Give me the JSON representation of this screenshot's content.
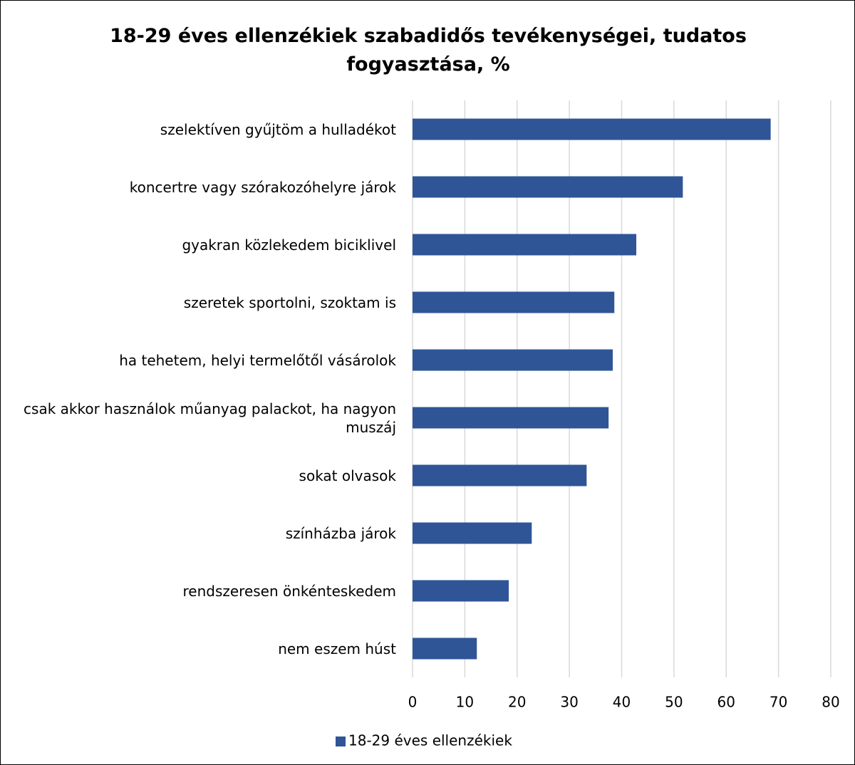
{
  "chart_data": {
    "type": "barh",
    "title": "18-29 éves ellenzékiek szabadidős tevékenységei, tudatos fogyasztása, %",
    "categories": [
      "szelektíven gyűjtöm a hulladékot",
      "koncertre vagy szórakozóhelyre járok",
      "gyakran közlekedem biciklivel",
      "szeretek sportolni, szoktam is",
      "ha tehetem, helyi termelőtől vásárolok",
      "csak akkor használok műanyag palackot, ha nagyon muszáj",
      "sokat olvasok",
      "színházba járok",
      "rendszeresen önkénteskedem",
      "nem eszem húst"
    ],
    "series": [
      {
        "name": "18-29 éves ellenzékiek",
        "color": "#2f5597",
        "values": [
          68.5,
          51.7,
          42.8,
          38.6,
          38.3,
          37.5,
          33.3,
          22.8,
          18.4,
          12.3
        ]
      }
    ],
    "xlim": [
      0,
      80
    ],
    "xticks": [
      0,
      10,
      20,
      30,
      40,
      50,
      60,
      70,
      80
    ],
    "grid": true,
    "legend": "bottom"
  }
}
